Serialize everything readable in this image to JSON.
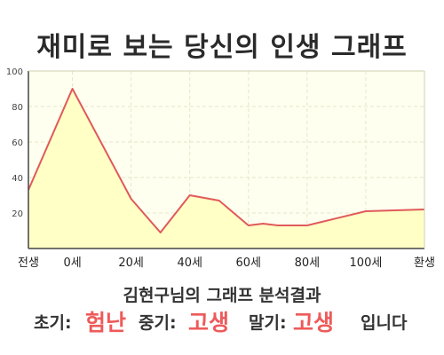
{
  "title": "재미로 보는 당신의 인생 그래프",
  "chart_data": {
    "type": "area",
    "x_labels": [
      "전생",
      "0세",
      "20세",
      "40세",
      "60세",
      "80세",
      "100세",
      "환생"
    ],
    "points": [
      {
        "x": -15,
        "y": 33
      },
      {
        "x": 0,
        "y": 90
      },
      {
        "x": 20,
        "y": 28
      },
      {
        "x": 30,
        "y": 9
      },
      {
        "x": 40,
        "y": 30
      },
      {
        "x": 50,
        "y": 27
      },
      {
        "x": 60,
        "y": 13
      },
      {
        "x": 65,
        "y": 14
      },
      {
        "x": 70,
        "y": 13
      },
      {
        "x": 80,
        "y": 13
      },
      {
        "x": 100,
        "y": 21
      },
      {
        "x": 120,
        "y": 22
      }
    ],
    "ylim": [
      0,
      100
    ],
    "y_ticks": [
      20,
      40,
      60,
      80,
      100
    ],
    "grid": true,
    "line_color": "#e05a5a",
    "fill_color": "#ffffc6",
    "plot_bg": "#fffff0",
    "legend": "none"
  },
  "analysis_text": "김현구님의 그래프 분석결과",
  "verdict": {
    "early_label": "초기:",
    "early_value": "험난",
    "mid_label": "중기:",
    "mid_value": "고생",
    "late_label": "말기:",
    "late_value": "고생",
    "suffix": "입니다"
  },
  "colors": {
    "accent": "#ee5a5a"
  }
}
